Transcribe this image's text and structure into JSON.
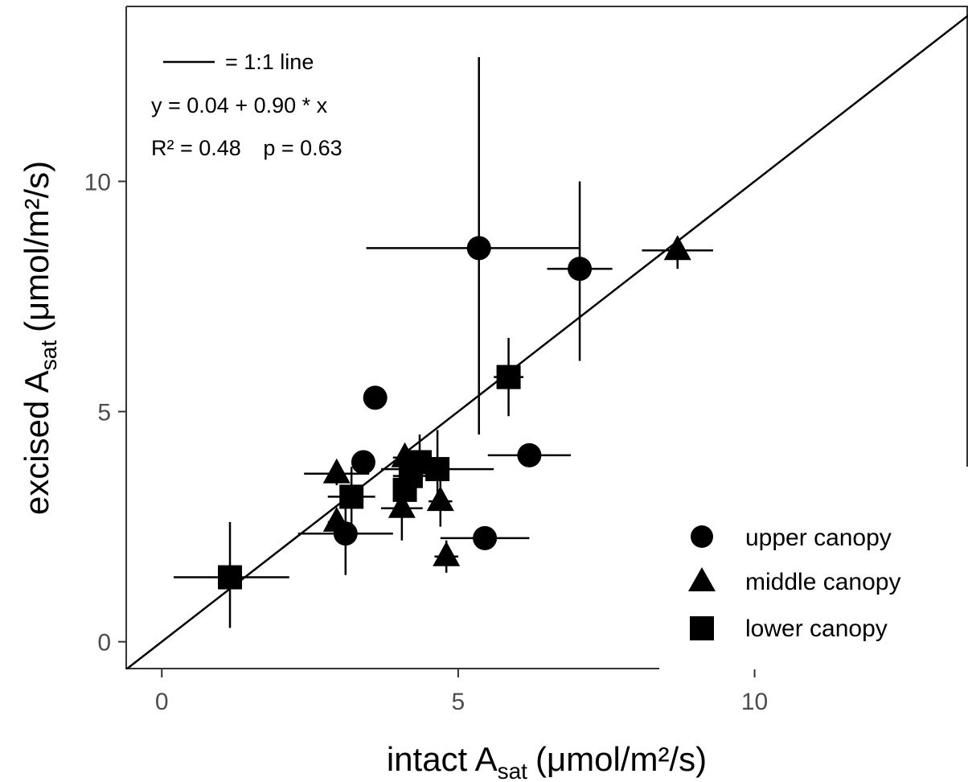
{
  "chart_data": {
    "type": "scatter",
    "xlabel": "intact A",
    "xlabel_sub": "sat",
    "xlabel_unit": "(μmol/m²/s)",
    "ylabel": "excised A",
    "ylabel_sub": "sat",
    "ylabel_unit": "(μmol/m²/s)",
    "xlim": [
      -0.6,
      13.6
    ],
    "ylim": [
      -0.6,
      13.8
    ],
    "xticks": [
      0,
      5,
      10
    ],
    "yticks": [
      0,
      5,
      10
    ],
    "grid": false,
    "legend_position": "bottom-right",
    "reference_line": {
      "label": "= 1:1 line",
      "slope": 1,
      "intercept": 0
    },
    "annotations": {
      "equation": "y = 0.04 + 0.90 * x",
      "r2": "R² = 0.48",
      "p": "p = 0.63"
    },
    "series": [
      {
        "name": "upper canopy",
        "marker": "circle",
        "points": [
          {
            "x": 5.35,
            "y": 8.55,
            "xerr": [
              3.45,
              7.05
            ],
            "yerr": [
              4.5,
              12.7
            ]
          },
          {
            "x": 7.05,
            "y": 8.1,
            "xerr": [
              6.5,
              7.6
            ],
            "yerr": [
              6.1,
              10.0
            ]
          },
          {
            "x": 3.6,
            "y": 5.3,
            "xerr": [
              3.6,
              3.6
            ],
            "yerr": [
              5.3,
              5.3
            ]
          },
          {
            "x": 3.4,
            "y": 3.9,
            "xerr": [
              3.3,
              3.5
            ],
            "yerr": [
              3.7,
              4.1
            ]
          },
          {
            "x": 6.2,
            "y": 4.05,
            "xerr": [
              5.5,
              6.9
            ],
            "yerr": [
              3.8,
              4.3
            ]
          },
          {
            "x": 3.1,
            "y": 2.35,
            "xerr": [
              2.3,
              3.9
            ],
            "yerr": [
              1.45,
              3.3
            ]
          },
          {
            "x": 5.45,
            "y": 2.25,
            "xerr": [
              4.7,
              6.2
            ],
            "yerr": [
              2.25,
              2.25
            ]
          }
        ]
      },
      {
        "name": "middle canopy",
        "marker": "triangle",
        "points": [
          {
            "x": 8.7,
            "y": 8.5,
            "xerr": [
              8.1,
              9.3
            ],
            "yerr": [
              8.1,
              8.8
            ]
          },
          {
            "x": 2.95,
            "y": 3.65,
            "xerr": [
              2.4,
              3.5
            ],
            "yerr": [
              3.4,
              3.9
            ]
          },
          {
            "x": 2.95,
            "y": 2.6,
            "xerr": [
              2.8,
              3.1
            ],
            "yerr": [
              2.3,
              2.9
            ]
          },
          {
            "x": 4.1,
            "y": 4.0,
            "xerr": [
              3.9,
              4.3
            ],
            "yerr": [
              3.7,
              4.3
            ]
          },
          {
            "x": 4.05,
            "y": 2.9,
            "xerr": [
              3.7,
              4.4
            ],
            "yerr": [
              2.2,
              3.4
            ]
          },
          {
            "x": 4.7,
            "y": 3.05,
            "xerr": [
              4.5,
              4.9
            ],
            "yerr": [
              2.5,
              3.6
            ]
          },
          {
            "x": 4.8,
            "y": 1.85,
            "xerr": [
              4.6,
              5.0
            ],
            "yerr": [
              1.5,
              2.2
            ]
          }
        ]
      },
      {
        "name": "lower canopy",
        "marker": "square",
        "points": [
          {
            "x": 5.85,
            "y": 5.75,
            "xerr": [
              5.6,
              6.1
            ],
            "yerr": [
              4.9,
              6.6
            ]
          },
          {
            "x": 4.65,
            "y": 3.75,
            "xerr": [
              3.7,
              5.6
            ],
            "yerr": [
              3.1,
              4.6
            ]
          },
          {
            "x": 4.35,
            "y": 3.9,
            "xerr": [
              3.9,
              4.8
            ],
            "yerr": [
              3.4,
              4.5
            ]
          },
          {
            "x": 4.2,
            "y": 3.6,
            "xerr": [
              3.9,
              4.5
            ],
            "yerr": [
              3.2,
              4.0
            ]
          },
          {
            "x": 4.1,
            "y": 3.3,
            "xerr": [
              3.9,
              4.3
            ],
            "yerr": [
              2.9,
              3.7
            ]
          },
          {
            "x": 3.2,
            "y": 3.15,
            "xerr": [
              2.8,
              3.6
            ],
            "yerr": [
              2.4,
              3.8
            ]
          },
          {
            "x": 1.15,
            "y": 1.4,
            "xerr": [
              0.2,
              2.15
            ],
            "yerr": [
              0.3,
              2.6
            ]
          }
        ]
      }
    ]
  }
}
